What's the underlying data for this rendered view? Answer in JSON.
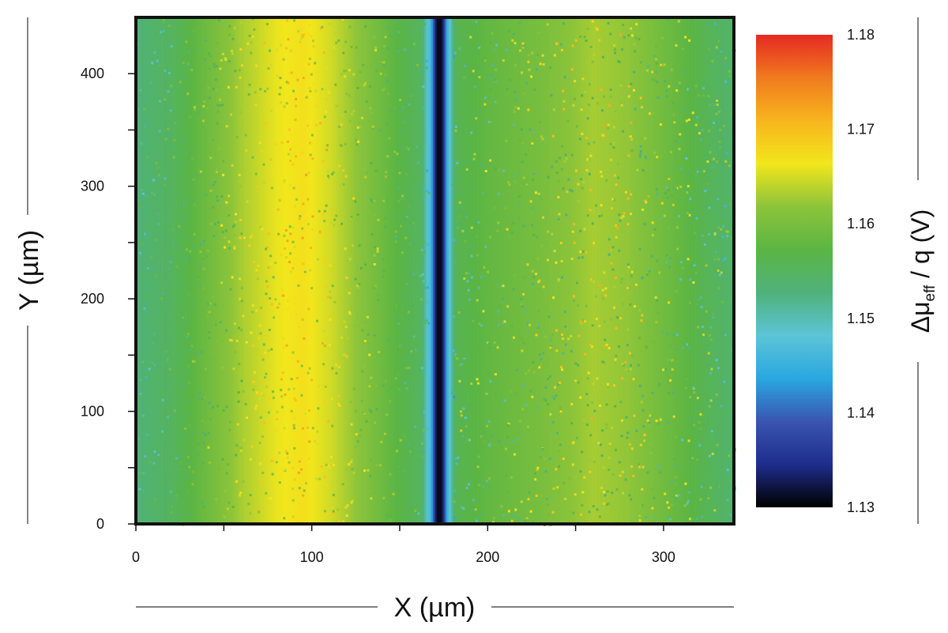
{
  "chart_data": {
    "type": "heatmap",
    "xlabel": "X (µm)",
    "ylabel": "Y (µm)",
    "colorbar_label": {
      "symbol": "Δμ",
      "subscript": "eff",
      "suffix": " / q (V)"
    },
    "xlim": [
      0,
      340
    ],
    "ylim": [
      0,
      450
    ],
    "x_ticks": [
      0,
      100,
      200,
      300
    ],
    "x_tick_labels": [
      "0",
      "100",
      "200",
      "300"
    ],
    "y_ticks": [
      0,
      100,
      200,
      300,
      400
    ],
    "y_tick_labels": [
      "0",
      "100",
      "200",
      "300",
      "400"
    ],
    "colorbar_range": [
      1.13,
      1.18
    ],
    "colorbar_ticks": [
      1.13,
      1.14,
      1.15,
      1.16,
      1.17,
      1.18
    ],
    "colorbar_tick_labels": [
      "1.13",
      "1.14",
      "1.15",
      "1.16",
      "1.17",
      "1.18"
    ],
    "colormap": [
      "#000000",
      "#1e2d8c",
      "#3a55b0",
      "#2aa7e0",
      "#5cc4d6",
      "#4fb27a",
      "#5bb544",
      "#8cc43a",
      "#f2e61c",
      "#f7b51e",
      "#f07a1e",
      "#e52a22"
    ],
    "grid": false,
    "column_profile": [
      {
        "x": 0,
        "value": 1.153
      },
      {
        "x": 20,
        "value": 1.155
      },
      {
        "x": 40,
        "value": 1.159
      },
      {
        "x": 60,
        "value": 1.163
      },
      {
        "x": 80,
        "value": 1.166
      },
      {
        "x": 95,
        "value": 1.167
      },
      {
        "x": 110,
        "value": 1.165
      },
      {
        "x": 130,
        "value": 1.161
      },
      {
        "x": 150,
        "value": 1.157
      },
      {
        "x": 162,
        "value": 1.155
      },
      {
        "x": 168,
        "value": 1.145
      },
      {
        "x": 171,
        "value": 1.131
      },
      {
        "x": 174,
        "value": 1.131
      },
      {
        "x": 177,
        "value": 1.145
      },
      {
        "x": 182,
        "value": 1.156
      },
      {
        "x": 200,
        "value": 1.158
      },
      {
        "x": 230,
        "value": 1.16
      },
      {
        "x": 260,
        "value": 1.163
      },
      {
        "x": 280,
        "value": 1.162
      },
      {
        "x": 310,
        "value": 1.158
      },
      {
        "x": 330,
        "value": 1.155
      },
      {
        "x": 340,
        "value": 1.154
      }
    ],
    "features": [
      {
        "type": "dark vertical line",
        "x_range": [
          169,
          176
        ],
        "value": 1.13
      }
    ]
  }
}
